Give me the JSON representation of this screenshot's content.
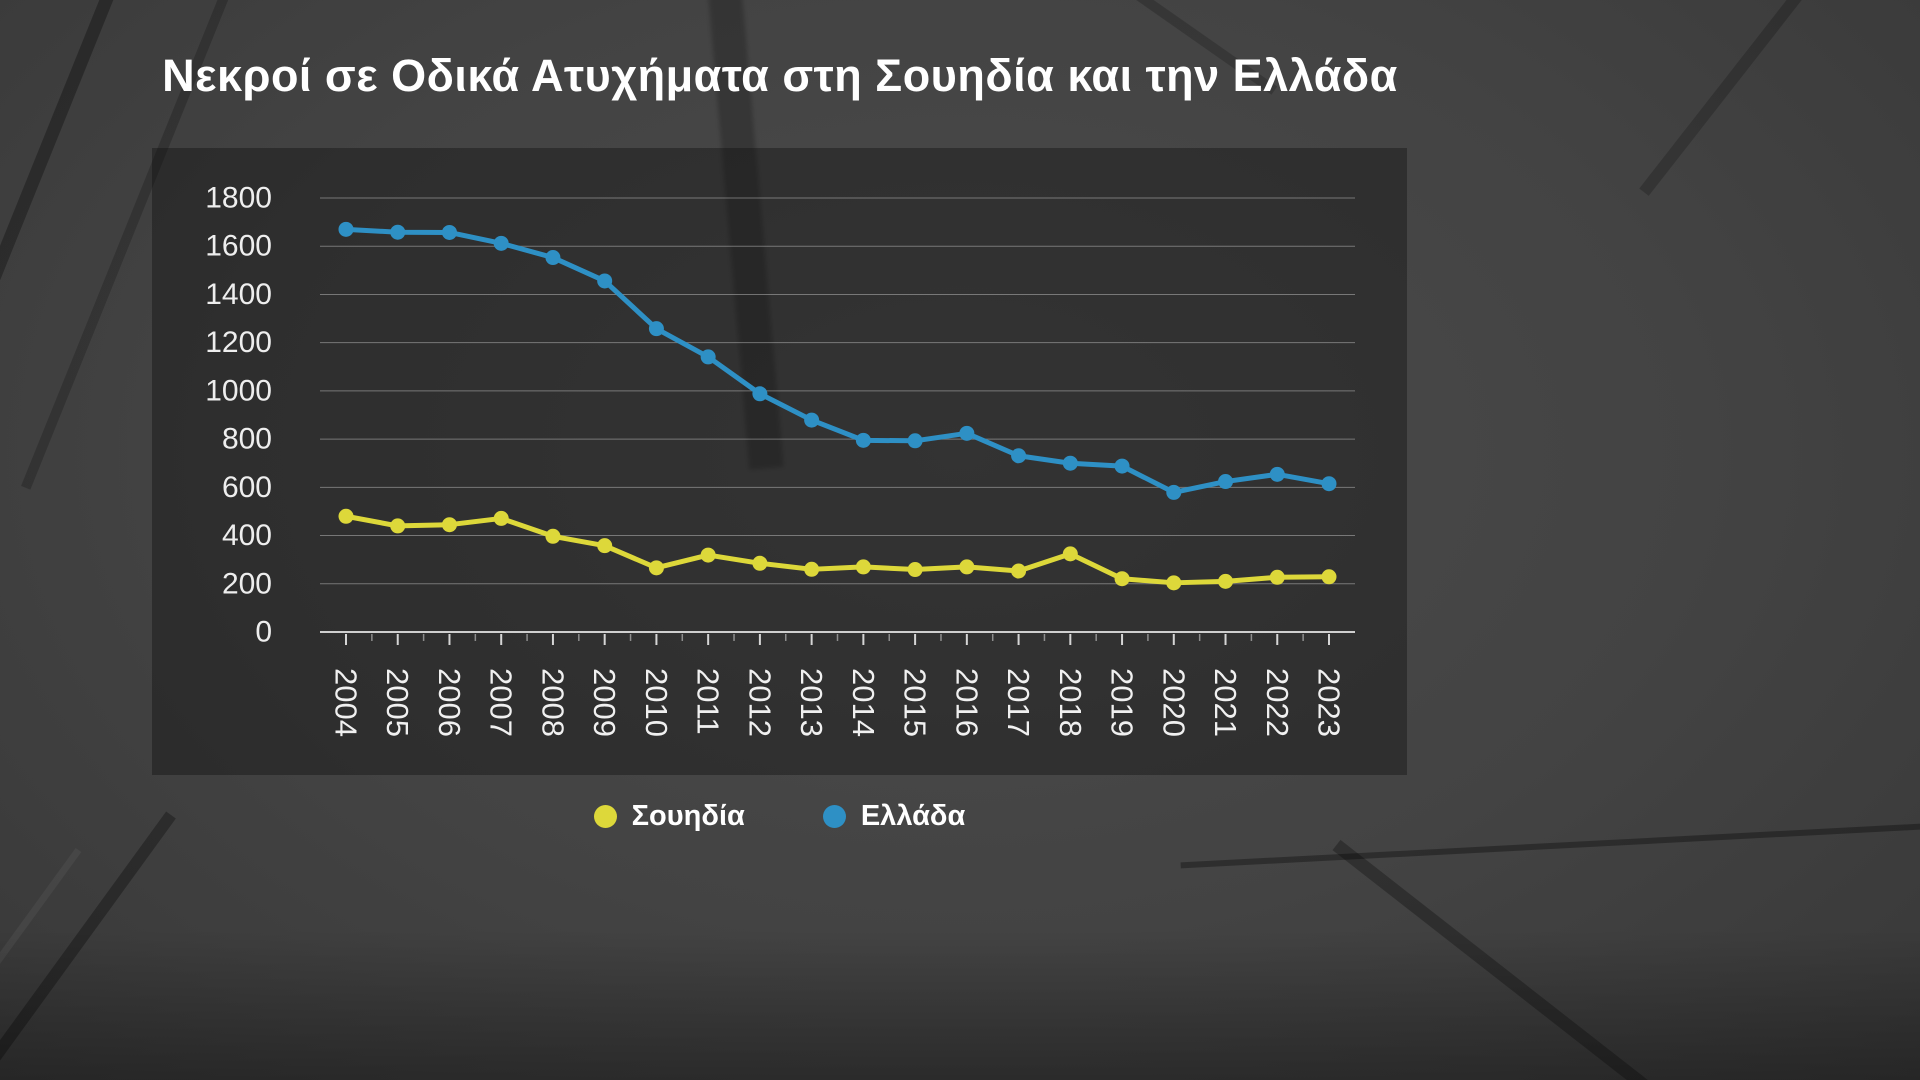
{
  "title": "Νεκροί σε Οδικά Ατυχήματα στη Σουηδία και την Ελλάδα",
  "legend": {
    "items": [
      {
        "label": "Σουηδία",
        "color": "#ddd83a"
      },
      {
        "label": "Ελλάδα",
        "color": "#2e90c5"
      }
    ]
  },
  "chart_data": {
    "type": "line",
    "title": "Νεκροί σε Οδικά Ατυχήματα στη Σουηδία και την Ελλάδα",
    "categories": [
      "2004",
      "2005",
      "2006",
      "2007",
      "2008",
      "2009",
      "2010",
      "2011",
      "2012",
      "2013",
      "2014",
      "2015",
      "2016",
      "2017",
      "2018",
      "2019",
      "2020",
      "2021",
      "2022",
      "2023"
    ],
    "series": [
      {
        "name": "Σουηδία",
        "color": "#ddd83a",
        "values": [
          480,
          440,
          445,
          471,
          397,
          358,
          266,
          319,
          285,
          260,
          270,
          259,
          270,
          253,
          324,
          221,
          204,
          210,
          227,
          229
        ]
      },
      {
        "name": "Ελλάδα",
        "color": "#2e90c5",
        "values": [
          1670,
          1658,
          1657,
          1612,
          1553,
          1456,
          1258,
          1141,
          988,
          879,
          795,
          793,
          824,
          731,
          700,
          688,
          579,
          624,
          654,
          615
        ]
      }
    ],
    "xlabel": "",
    "ylabel": "",
    "ylim": [
      0,
      1800
    ],
    "y_ticks": [
      0,
      200,
      400,
      600,
      800,
      1000,
      1200,
      1400,
      1600,
      1800
    ],
    "grid": "horizontal",
    "legend_position": "bottom",
    "marker": "circle"
  }
}
